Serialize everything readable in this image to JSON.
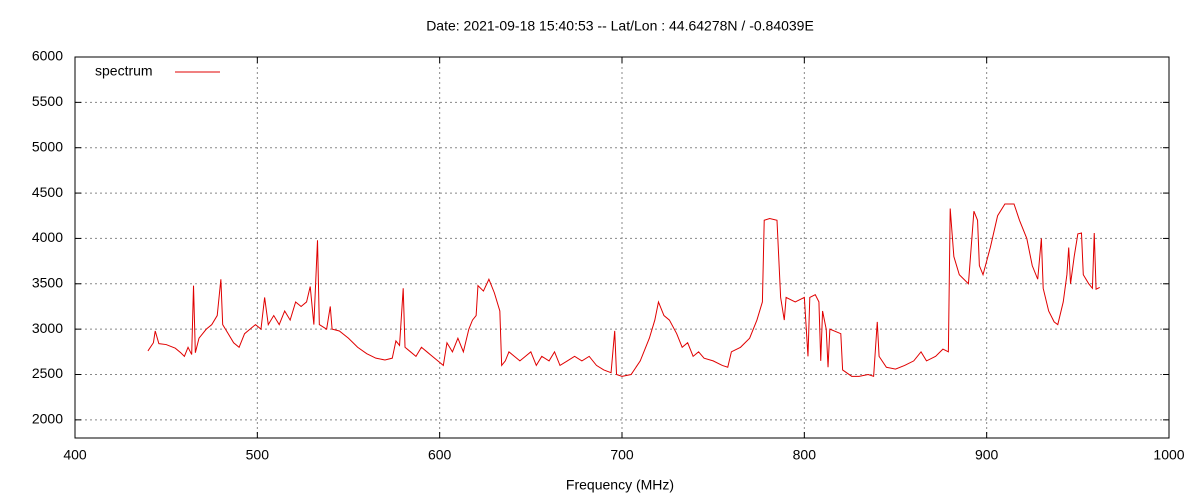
{
  "chart_data": {
    "type": "line",
    "title": "Date: 2021-09-18 15:40:53  --  Lat/Lon : 44.64278N / -0.84039E",
    "x_label": "Frequency (MHz)",
    "xlim": [
      400,
      1000
    ],
    "xticks": [
      400,
      500,
      600,
      700,
      800,
      900,
      1000
    ],
    "ylim": [
      1800,
      6000
    ],
    "yticks": [
      2000,
      2500,
      3000,
      3500,
      4000,
      4500,
      5000,
      5500,
      6000
    ],
    "grid": true,
    "legend": "top-left",
    "series": [
      {
        "name": "spectrum",
        "color": "#e00000",
        "x": [
          440,
          443,
          444,
          446,
          450,
          455,
          458,
          460,
          462,
          464,
          465,
          466,
          468,
          470,
          472,
          475,
          478,
          480,
          481,
          484,
          487,
          490,
          493,
          496,
          499,
          502,
          504,
          506,
          509,
          512,
          515,
          518,
          521,
          524,
          527,
          529,
          531,
          533,
          534,
          538,
          540,
          541,
          545,
          550,
          555,
          560,
          565,
          570,
          574,
          576,
          578,
          580,
          581,
          584,
          587,
          590,
          593,
          596,
          599,
          602,
          604,
          607,
          610,
          613,
          616,
          618,
          620,
          621,
          624,
          627,
          630,
          633,
          634,
          636,
          638,
          641,
          644,
          647,
          650,
          653,
          656,
          660,
          663,
          666,
          670,
          674,
          678,
          682,
          686,
          690,
          694,
          696,
          697,
          700,
          705,
          710,
          715,
          718,
          720,
          723,
          726,
          730,
          733,
          736,
          739,
          742,
          745,
          750,
          755,
          758,
          760,
          765,
          770,
          774,
          777,
          778,
          781,
          785,
          787,
          789,
          790,
          795,
          800,
          802,
          803,
          806,
          808,
          809,
          810,
          812,
          813,
          814,
          820,
          821,
          826,
          830,
          835,
          838,
          840,
          841,
          845,
          850,
          855,
          860,
          864,
          867,
          872,
          876,
          879,
          880,
          882,
          885,
          890,
          893,
          895,
          896,
          898,
          902,
          906,
          910,
          915,
          918,
          922,
          925,
          928,
          930,
          931,
          934,
          937,
          939,
          942,
          944,
          945,
          946,
          948,
          950,
          952,
          953,
          956,
          958,
          959,
          960,
          962
        ],
        "values": [
          2760,
          2850,
          2980,
          2840,
          2830,
          2790,
          2740,
          2700,
          2800,
          2720,
          3480,
          2740,
          2900,
          2950,
          3000,
          3050,
          3150,
          3550,
          3050,
          2950,
          2850,
          2800,
          2950,
          3000,
          3050,
          3000,
          3350,
          3050,
          3150,
          3050,
          3200,
          3100,
          3300,
          3250,
          3300,
          3470,
          3050,
          3980,
          3050,
          3000,
          3250,
          3000,
          2980,
          2900,
          2800,
          2730,
          2680,
          2660,
          2680,
          2870,
          2820,
          3450,
          2800,
          2750,
          2700,
          2800,
          2750,
          2700,
          2650,
          2600,
          2850,
          2750,
          2900,
          2750,
          3000,
          3100,
          3150,
          3480,
          3420,
          3550,
          3400,
          3200,
          2600,
          2650,
          2750,
          2700,
          2650,
          2700,
          2750,
          2600,
          2700,
          2650,
          2750,
          2600,
          2650,
          2700,
          2650,
          2700,
          2600,
          2550,
          2520,
          2980,
          2500,
          2480,
          2500,
          2650,
          2900,
          3100,
          3300,
          3150,
          3100,
          2950,
          2800,
          2850,
          2700,
          2750,
          2680,
          2650,
          2600,
          2580,
          2750,
          2800,
          2900,
          3100,
          3300,
          4200,
          4220,
          4200,
          3350,
          3100,
          3350,
          3300,
          3350,
          2700,
          3350,
          3380,
          3300,
          2650,
          3200,
          3000,
          2580,
          3000,
          2950,
          2550,
          2480,
          2480,
          2500,
          2480,
          3080,
          2700,
          2580,
          2560,
          2600,
          2650,
          2750,
          2650,
          2700,
          2780,
          2750,
          4330,
          3800,
          3600,
          3500,
          4300,
          4200,
          3700,
          3600,
          3900,
          4250,
          4380,
          4380,
          4200,
          4000,
          3700,
          3550,
          4000,
          3450,
          3200,
          3080,
          3050,
          3300,
          3600,
          3900,
          3500,
          3800,
          4050,
          4060,
          3600,
          3500,
          3450,
          4060,
          3440,
          3460
        ]
      }
    ]
  }
}
